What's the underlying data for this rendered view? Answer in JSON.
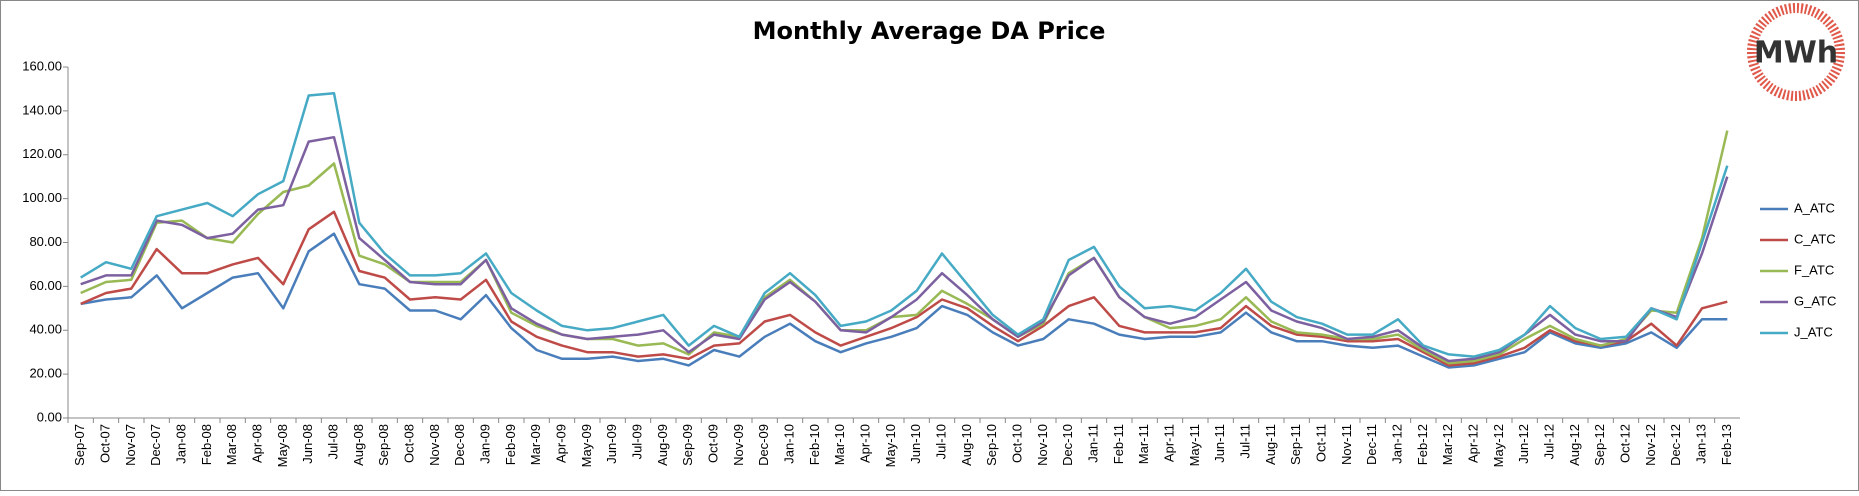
{
  "logo": "MWh",
  "chart_data": {
    "type": "line",
    "title": "Monthly Average DA Price",
    "categories": [
      "Sep-07",
      "Oct-07",
      "Nov-07",
      "Dec-07",
      "Jan-08",
      "Feb-08",
      "Mar-08",
      "Apr-08",
      "May-08",
      "Jun-08",
      "Jul-08",
      "Aug-08",
      "Sep-08",
      "Oct-08",
      "Nov-08",
      "Dec-08",
      "Jan-09",
      "Feb-09",
      "Mar-09",
      "Apr-09",
      "May-09",
      "Jun-09",
      "Jul-09",
      "Aug-09",
      "Sep-09",
      "Oct-09",
      "Nov-09",
      "Dec-09",
      "Jan-10",
      "Feb-10",
      "Mar-10",
      "Apr-10",
      "May-10",
      "Jun-10",
      "Jul-10",
      "Aug-10",
      "Sep-10",
      "Oct-10",
      "Nov-10",
      "Dec-10",
      "Jan-11",
      "Feb-11",
      "Mar-11",
      "Apr-11",
      "May-11",
      "Jun-11",
      "Jul-11",
      "Aug-11",
      "Sep-11",
      "Oct-11",
      "Nov-11",
      "Dec-11",
      "Jan-12",
      "Feb-12",
      "Mar-12",
      "Apr-12",
      "May-12",
      "Jun-12",
      "Jul-12",
      "Aug-12",
      "Sep-12",
      "Oct-12",
      "Nov-12",
      "Dec-12",
      "Jan-13",
      "Feb-13"
    ],
    "series": [
      {
        "name": "A_ATC",
        "color": "#4a7ebb",
        "values": [
          52,
          54,
          55,
          65,
          50,
          57,
          64,
          66,
          50,
          76,
          84,
          61,
          59,
          49,
          49,
          45,
          56,
          41,
          31,
          27,
          27,
          28,
          26,
          27,
          24,
          31,
          28,
          37,
          43,
          35,
          30,
          34,
          37,
          41,
          51,
          47,
          39,
          33,
          36,
          45,
          43,
          38,
          36,
          37,
          37,
          39,
          48,
          39,
          35,
          35,
          33,
          32,
          33,
          28,
          23,
          24,
          27,
          30,
          39,
          34,
          32,
          34,
          39,
          32,
          45,
          45
        ]
      },
      {
        "name": "C_ATC",
        "color": "#be4b48",
        "values": [
          52,
          57,
          59,
          77,
          66,
          66,
          70,
          73,
          61,
          86,
          94,
          67,
          64,
          54,
          55,
          54,
          63,
          44,
          37,
          33,
          30,
          30,
          28,
          29,
          27,
          33,
          34,
          44,
          47,
          39,
          33,
          37,
          41,
          46,
          54,
          50,
          42,
          35,
          42,
          51,
          55,
          42,
          39,
          39,
          39,
          41,
          51,
          42,
          38,
          37,
          35,
          35,
          36,
          30,
          24,
          25,
          28,
          32,
          40,
          35,
          33,
          35,
          43,
          33,
          50,
          53
        ]
      },
      {
        "name": "F_ATC",
        "color": "#98b954",
        "values": [
          57,
          62,
          63,
          89,
          90,
          82,
          80,
          93,
          103,
          106,
          116,
          74,
          70,
          62,
          62,
          62,
          72,
          48,
          42,
          38,
          36,
          36,
          33,
          34,
          29,
          39,
          37,
          55,
          63,
          53,
          40,
          40,
          46,
          47,
          58,
          52,
          45,
          37,
          43,
          66,
          73,
          55,
          46,
          41,
          42,
          45,
          55,
          44,
          39,
          38,
          36,
          36,
          38,
          31,
          25,
          26,
          29,
          36,
          42,
          36,
          33,
          36,
          49,
          48,
          82,
          131
        ]
      },
      {
        "name": "G_ATC",
        "color": "#7d60a0",
        "values": [
          61,
          65,
          65,
          90,
          88,
          82,
          84,
          95,
          97,
          126,
          128,
          82,
          72,
          62,
          61,
          61,
          72,
          50,
          43,
          38,
          36,
          37,
          38,
          40,
          30,
          38,
          36,
          54,
          62,
          53,
          40,
          39,
          46,
          54,
          66,
          56,
          45,
          37,
          44,
          65,
          73,
          55,
          46,
          43,
          46,
          54,
          62,
          49,
          44,
          41,
          36,
          37,
          40,
          32,
          26,
          27,
          30,
          38,
          47,
          38,
          35,
          35,
          50,
          46,
          75,
          110
        ]
      },
      {
        "name": "J_ATC",
        "color": "#46aac5",
        "values": [
          64,
          71,
          68,
          92,
          95,
          98,
          92,
          102,
          108,
          147,
          148,
          89,
          75,
          65,
          65,
          66,
          75,
          57,
          49,
          42,
          40,
          41,
          44,
          47,
          33,
          42,
          37,
          57,
          66,
          56,
          42,
          44,
          49,
          58,
          75,
          61,
          47,
          38,
          45,
          72,
          78,
          60,
          50,
          51,
          49,
          57,
          68,
          53,
          46,
          43,
          38,
          38,
          45,
          33,
          29,
          28,
          31,
          38,
          51,
          41,
          36,
          37,
          50,
          45,
          80,
          115
        ]
      }
    ],
    "ylim": [
      0,
      160
    ],
    "yticks": [
      {
        "value": 0,
        "label": "0.00"
      },
      {
        "value": 20,
        "label": "20.00"
      },
      {
        "value": 40,
        "label": "40.00"
      },
      {
        "value": 60,
        "label": "60.00"
      },
      {
        "value": 80,
        "label": "80.00"
      },
      {
        "value": 100,
        "label": "100.00"
      },
      {
        "value": 120,
        "label": "120.00"
      },
      {
        "value": 140,
        "label": "140.00"
      },
      {
        "value": 160,
        "label": "160.00"
      }
    ],
    "grid": false,
    "legend": "right"
  }
}
